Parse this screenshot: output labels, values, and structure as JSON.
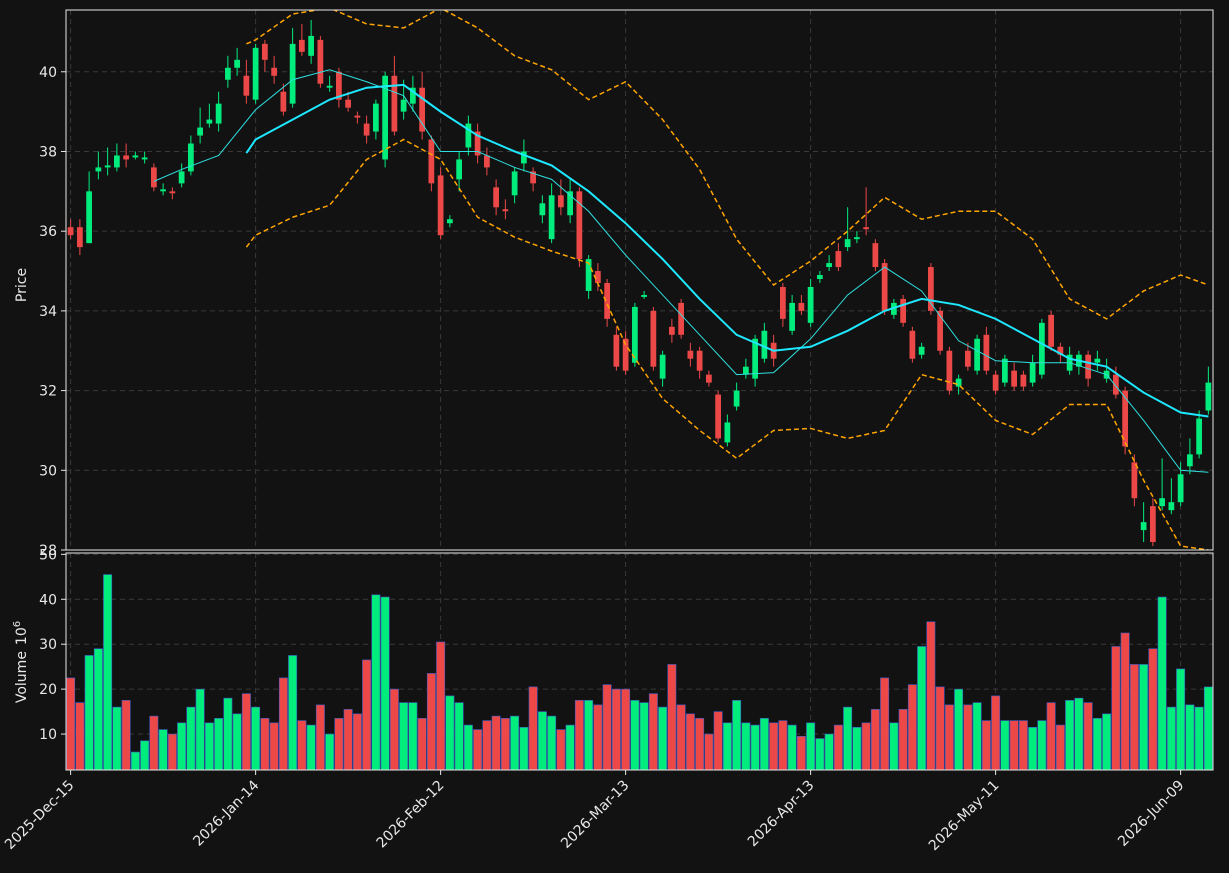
{
  "chart_data": {
    "type": "candlestick",
    "categories": [
      "2025-Dec-15",
      null,
      null,
      null,
      null,
      null,
      null,
      null,
      null,
      null,
      null,
      null,
      null,
      null,
      null,
      null,
      null,
      null,
      null,
      null,
      "2026-Jan-14",
      null,
      null,
      null,
      null,
      null,
      null,
      null,
      null,
      null,
      null,
      null,
      null,
      null,
      null,
      null,
      null,
      null,
      null,
      null,
      "2026-Feb-12",
      null,
      null,
      null,
      null,
      null,
      null,
      null,
      null,
      null,
      null,
      null,
      null,
      null,
      null,
      null,
      null,
      null,
      null,
      null,
      "2026-Mar-13",
      null,
      null,
      null,
      null,
      null,
      null,
      null,
      null,
      null,
      null,
      null,
      null,
      null,
      null,
      null,
      null,
      null,
      null,
      null,
      "2026-Apr-13",
      null,
      null,
      null,
      null,
      null,
      null,
      null,
      null,
      null,
      null,
      null,
      null,
      null,
      null,
      null,
      null,
      null,
      null,
      null,
      "2026-May-11",
      null,
      null,
      null,
      null,
      null,
      null,
      null,
      null,
      null,
      null,
      null,
      null,
      null,
      null,
      null,
      null,
      null,
      null,
      null,
      "2026-Jun-09",
      null,
      null,
      null
    ],
    "open": [
      36.1,
      36.1,
      35.7,
      37.5,
      37.6,
      37.6,
      37.9,
      37.85,
      37.8,
      37.6,
      37.0,
      37.0,
      37.2,
      37.5,
      38.4,
      38.7,
      38.7,
      39.8,
      40.1,
      39.9,
      39.3,
      40.7,
      40.1,
      39.5,
      39.2,
      40.8,
      40.4,
      40.8,
      39.6,
      40.0,
      39.3,
      38.9,
      38.7,
      38.5,
      37.8,
      39.9,
      39.0,
      39.2,
      39.6,
      38.3,
      37.4,
      36.2,
      37.3,
      38.1,
      38.5,
      37.9,
      37.1,
      36.55,
      36.9,
      37.7,
      37.5,
      36.4,
      35.8,
      36.9,
      36.4,
      37.0,
      34.5,
      35.0,
      34.7,
      33.4,
      33.3,
      32.7,
      34.35,
      34.0,
      32.3,
      33.6,
      34.2,
      33.0,
      33.0,
      32.4,
      31.9,
      30.7,
      31.6,
      32.4,
      32.3,
      32.8,
      33.2,
      34.6,
      33.5,
      34.2,
      33.7,
      34.8,
      35.1,
      35.5,
      35.6,
      35.8,
      36.1,
      35.7,
      35.2,
      33.9,
      34.3,
      33.5,
      32.9,
      35.1,
      34.0,
      33.0,
      32.1,
      33.0,
      32.5,
      33.4,
      32.4,
      32.2,
      32.5,
      32.4,
      32.2,
      32.4,
      33.9,
      33.1,
      32.5,
      32.6,
      32.9,
      32.7,
      32.3,
      32.4,
      32.0,
      30.2,
      28.5,
      29.1,
      29.1,
      29.0,
      29.2,
      30.1,
      30.4,
      31.5
    ],
    "high": [
      36.3,
      36.3,
      37.5,
      38.0,
      38.1,
      38.2,
      38.2,
      38.0,
      38.0,
      37.7,
      37.2,
      37.1,
      37.7,
      38.4,
      39.1,
      39.2,
      39.5,
      40.4,
      40.6,
      40.3,
      40.7,
      40.8,
      40.4,
      39.7,
      41.1,
      41.2,
      41.3,
      40.9,
      39.9,
      40.1,
      39.5,
      39.0,
      38.9,
      39.3,
      40.0,
      40.4,
      39.8,
      39.9,
      40.0,
      38.4,
      37.6,
      36.4,
      38.0,
      38.9,
      38.7,
      38.1,
      37.3,
      36.8,
      37.6,
      38.3,
      37.6,
      36.9,
      37.2,
      37.3,
      37.3,
      37.1,
      35.4,
      35.2,
      34.8,
      33.6,
      33.5,
      34.2,
      34.5,
      34.1,
      33.0,
      33.8,
      34.3,
      33.2,
      33.1,
      32.5,
      32.0,
      31.4,
      32.2,
      32.8,
      33.4,
      33.7,
      33.4,
      34.7,
      34.4,
      34.4,
      34.8,
      35.0,
      35.4,
      35.7,
      36.6,
      36.0,
      37.1,
      35.8,
      35.3,
      34.3,
      34.4,
      33.6,
      33.2,
      35.2,
      34.1,
      33.1,
      32.4,
      33.2,
      33.4,
      33.6,
      32.5,
      32.9,
      32.7,
      32.5,
      32.9,
      33.8,
      34.0,
      33.2,
      33.1,
      33.0,
      33.0,
      33.0,
      32.8,
      32.6,
      32.1,
      30.4,
      29.2,
      29.3,
      30.3,
      29.8,
      30.2,
      30.8,
      31.5,
      32.6
    ],
    "low": [
      35.8,
      35.4,
      35.7,
      37.3,
      37.4,
      37.5,
      37.6,
      37.8,
      37.7,
      37.0,
      36.9,
      36.8,
      37.1,
      37.4,
      38.2,
      38.6,
      38.5,
      39.6,
      39.9,
      39.2,
      39.2,
      40.0,
      39.7,
      38.9,
      39.1,
      40.4,
      40.2,
      39.6,
      39.5,
      39.1,
      39.0,
      38.7,
      38.2,
      38.3,
      37.6,
      38.4,
      38.8,
      39.0,
      38.3,
      37.0,
      35.8,
      36.1,
      37.0,
      37.9,
      37.7,
      37.4,
      36.4,
      36.3,
      36.7,
      37.5,
      37.0,
      36.2,
      35.7,
      36.4,
      36.2,
      35.1,
      34.3,
      34.5,
      33.6,
      32.5,
      32.4,
      32.6,
      34.3,
      32.5,
      32.1,
      33.2,
      33.3,
      32.6,
      32.3,
      32.1,
      30.7,
      30.6,
      31.5,
      32.3,
      32.1,
      32.7,
      32.6,
      33.6,
      33.4,
      33.9,
      33.6,
      34.7,
      35.0,
      35.0,
      35.5,
      35.7,
      35.9,
      35.0,
      33.9,
      33.8,
      33.6,
      32.7,
      32.8,
      33.9,
      32.9,
      31.9,
      31.9,
      32.5,
      32.4,
      32.4,
      31.9,
      32.1,
      32.0,
      32.0,
      32.1,
      32.3,
      33.0,
      32.7,
      32.4,
      32.4,
      32.1,
      32.5,
      32.2,
      31.8,
      30.4,
      29.1,
      28.2,
      28.1,
      29.0,
      28.9,
      29.1,
      29.9,
      30.3,
      31.4
    ],
    "close": [
      35.9,
      35.6,
      37.0,
      37.6,
      37.65,
      37.9,
      37.8,
      37.9,
      37.85,
      37.1,
      37.05,
      36.95,
      37.5,
      38.2,
      38.6,
      38.8,
      39.2,
      40.1,
      40.3,
      39.4,
      40.6,
      40.3,
      39.9,
      39.0,
      40.7,
      40.5,
      40.9,
      39.7,
      39.65,
      39.3,
      39.1,
      38.85,
      38.4,
      39.2,
      39.9,
      38.5,
      39.3,
      39.6,
      38.5,
      37.2,
      35.9,
      36.3,
      37.8,
      38.7,
      37.9,
      37.6,
      36.6,
      36.5,
      37.5,
      38.0,
      37.2,
      36.7,
      36.9,
      36.6,
      37.0,
      35.3,
      35.3,
      34.7,
      33.8,
      32.6,
      32.5,
      34.1,
      34.4,
      32.6,
      32.9,
      33.4,
      33.4,
      32.8,
      32.5,
      32.2,
      30.8,
      31.2,
      32.0,
      32.6,
      33.3,
      33.5,
      32.8,
      33.8,
      34.2,
      34.0,
      34.6,
      34.9,
      35.2,
      35.1,
      35.8,
      35.85,
      36.05,
      35.1,
      34.0,
      34.2,
      33.7,
      32.8,
      33.1,
      34.0,
      33.0,
      32.0,
      32.3,
      32.6,
      33.3,
      32.5,
      32.0,
      32.8,
      32.1,
      32.1,
      32.7,
      33.7,
      33.1,
      32.9,
      32.9,
      32.9,
      32.3,
      32.8,
      32.5,
      31.9,
      30.6,
      29.3,
      28.7,
      28.2,
      29.3,
      29.2,
      29.9,
      30.4,
      31.3,
      32.2
    ],
    "volume": [
      22.5,
      17,
      27.5,
      29,
      45.5,
      16,
      17.5,
      6,
      8.5,
      14,
      11,
      10,
      12.5,
      16,
      20,
      12.5,
      13.5,
      18,
      14.5,
      19,
      16,
      13.5,
      12.5,
      22.5,
      27.5,
      13,
      12,
      16.5,
      10,
      13.5,
      15.5,
      14.5,
      26.5,
      41,
      40.5,
      20,
      17,
      17,
      13.5,
      23.5,
      30.5,
      18.5,
      17,
      12,
      11,
      13,
      14,
      13.5,
      14,
      11.5,
      20.5,
      15,
      14,
      11,
      12,
      17.5,
      17.5,
      16.5,
      21,
      20,
      20,
      17.5,
      17,
      19,
      16,
      25.5,
      16.5,
      14.5,
      13.5,
      10,
      15,
      12.5,
      17.5,
      12.5,
      12,
      13.5,
      12.5,
      13,
      12,
      9.5,
      12.5,
      9,
      10,
      12,
      16,
      11.5,
      12.5,
      15.5,
      22.5,
      12.5,
      15.5,
      21,
      29.5,
      35,
      20.5,
      16.5,
      20,
      16.5,
      17,
      13,
      18.5,
      13,
      13,
      13,
      11.5,
      13,
      17,
      12,
      17.5,
      18,
      17,
      13.5,
      14.5,
      29.5,
      32.5,
      25.5,
      25.5,
      29,
      40.5,
      16,
      24.5,
      16.5,
      16,
      20.5
    ],
    "up_color": "#00ec7c",
    "down_color": "#ed4848",
    "ylabel": "Price",
    "ylim": [
      28,
      41.55
    ],
    "yticks": [
      28,
      30,
      32,
      34,
      36,
      38,
      40
    ],
    "volume_label": "Volume",
    "volume_scale": "10",
    "volume_exponent": "6",
    "volume_ylim": [
      2,
      50.3
    ],
    "volume_yticks": [
      10,
      20,
      30,
      40,
      50
    ],
    "grid": true,
    "lines": [
      {
        "color": "#2fe0e0",
        "width": 1,
        "dashed": false,
        "x": [
          9,
          12,
          16,
          20,
          24,
          28,
          32,
          36,
          40,
          44,
          48,
          52,
          56,
          60,
          64,
          68,
          72,
          76,
          80,
          84,
          88,
          92,
          96,
          100,
          104,
          108,
          112,
          116,
          120,
          123
        ],
        "values": [
          37.25,
          37.55,
          37.9,
          39.05,
          39.8,
          40.05,
          39.75,
          39.4,
          38.0,
          38.0,
          37.6,
          37.3,
          36.5,
          35.4,
          34.4,
          33.4,
          32.4,
          32.45,
          33.3,
          34.4,
          35.1,
          34.5,
          33.25,
          32.75,
          32.7,
          32.7,
          32.4,
          31.25,
          30.0,
          29.95
        ]
      },
      {
        "color": "#1ee8ff",
        "width": 2,
        "dashed": false,
        "x": [
          19,
          20,
          24,
          28,
          32,
          36,
          40,
          44,
          48,
          52,
          56,
          60,
          64,
          68,
          72,
          76,
          80,
          84,
          88,
          92,
          96,
          100,
          104,
          108,
          112,
          116,
          120,
          123
        ],
        "values": [
          37.96,
          38.3,
          38.8,
          39.3,
          39.6,
          39.67,
          39.0,
          38.4,
          38.0,
          37.65,
          37.0,
          36.2,
          35.3,
          34.3,
          33.4,
          33.0,
          33.1,
          33.5,
          34.0,
          34.3,
          34.15,
          33.8,
          33.3,
          32.8,
          32.6,
          31.95,
          31.45,
          31.35
        ]
      },
      {
        "color": "#ffa500",
        "width": 1.5,
        "dashed": true,
        "x": [
          19,
          20,
          24,
          28,
          32,
          36,
          40,
          44,
          48,
          52,
          56,
          60,
          64,
          68,
          72,
          76,
          80,
          84,
          88,
          92,
          96,
          100,
          104,
          108,
          112,
          116,
          120,
          123
        ],
        "values": [
          40.7,
          40.8,
          41.45,
          41.6,
          41.2,
          41.1,
          41.6,
          41.1,
          40.4,
          40.05,
          39.3,
          39.75,
          38.8,
          37.55,
          35.8,
          34.65,
          35.25,
          36.0,
          36.85,
          36.3,
          36.5,
          36.5,
          35.8,
          34.3,
          33.8,
          34.5,
          34.9,
          34.65
        ]
      },
      {
        "color": "#ffa500",
        "width": 1.5,
        "dashed": true,
        "x": [
          19,
          20,
          24,
          28,
          32,
          36,
          40,
          44,
          48,
          52,
          56,
          60,
          64,
          68,
          72,
          76,
          80,
          84,
          88,
          92,
          96,
          100,
          104,
          108,
          112,
          116,
          120,
          123
        ],
        "values": [
          35.6,
          35.9,
          36.35,
          36.65,
          37.8,
          38.3,
          37.8,
          36.35,
          35.85,
          35.5,
          35.2,
          33.15,
          31.8,
          31.0,
          30.3,
          31.0,
          31.05,
          30.8,
          31.0,
          32.4,
          32.15,
          31.25,
          30.9,
          31.65,
          31.65,
          29.75,
          28.1,
          28.0
        ]
      }
    ]
  }
}
